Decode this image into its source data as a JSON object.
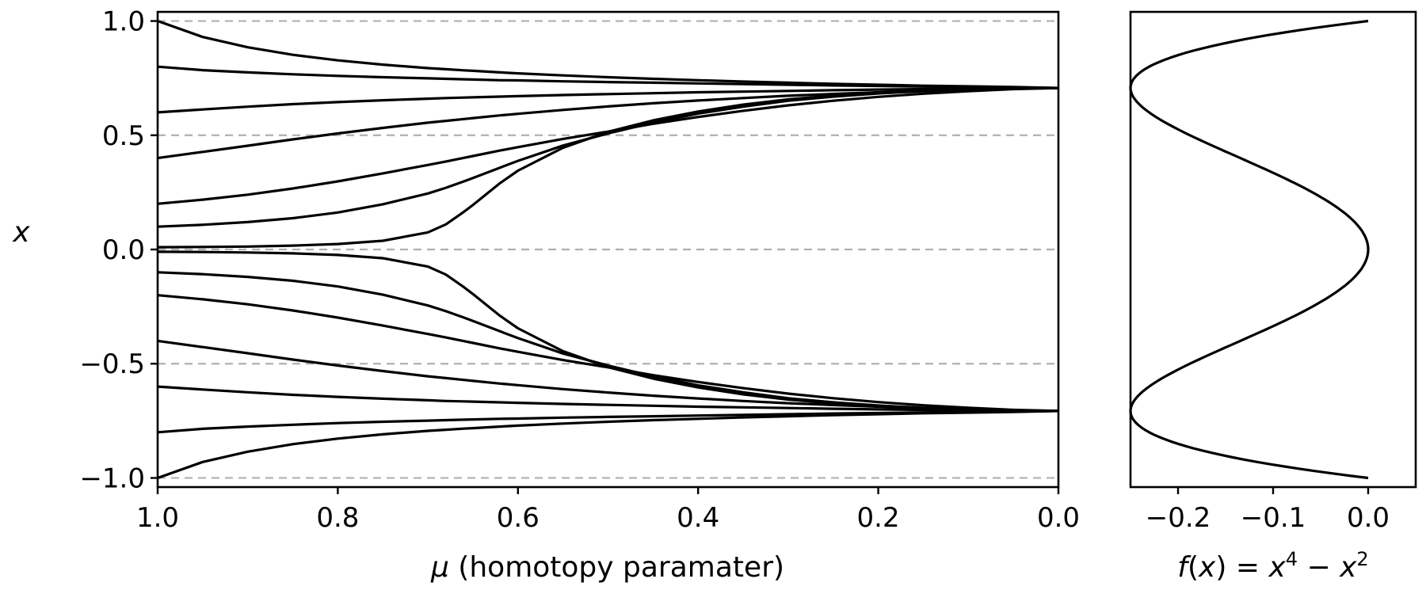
{
  "chart_data": [
    {
      "type": "line",
      "title": "",
      "xlabel": "μ (homotopy paramater)",
      "ylabel": "x",
      "xlim": [
        1.0,
        0.0
      ],
      "x_reversed": true,
      "ylim": [
        -1.04,
        1.04
      ],
      "xticks": [
        "1.0",
        "0.8",
        "0.6",
        "0.4",
        "0.2",
        "0.0"
      ],
      "yticks": [
        "1.0",
        "0.5",
        "0.0",
        "−0.5",
        "−1.0"
      ],
      "y_gridlines": [
        1.0,
        0.5,
        0.0,
        -0.5,
        -1.0
      ],
      "grid_style": "dashed gray horizontal lines",
      "legend": "none",
      "line_color": "#000000",
      "x": [
        1.0,
        0.95,
        0.9,
        0.85,
        0.8,
        0.75,
        0.7,
        0.68,
        0.66,
        0.65,
        0.62,
        0.6,
        0.55,
        0.5,
        0.45,
        0.4,
        0.35,
        0.3,
        0.25,
        0.2,
        0.15,
        0.1,
        0.05,
        0.0
      ],
      "series": [
        {
          "values": [
            1.0,
            0.93,
            0.885,
            0.852,
            0.828,
            0.809,
            0.794,
            0.789,
            0.784,
            0.782,
            0.775,
            0.771,
            0.762,
            0.754,
            0.747,
            0.741,
            0.735,
            0.73,
            0.725,
            0.721,
            0.717,
            0.714,
            0.711,
            0.707
          ]
        },
        {
          "values": [
            0.8,
            0.785,
            0.775,
            0.767,
            0.76,
            0.754,
            0.749,
            0.747,
            0.745,
            0.744,
            0.741,
            0.74,
            0.736,
            0.733,
            0.73,
            0.727,
            0.724,
            0.721,
            0.718,
            0.716,
            0.713,
            0.711,
            0.709,
            0.707
          ]
        },
        {
          "values": [
            0.6,
            0.613,
            0.625,
            0.636,
            0.645,
            0.653,
            0.66,
            0.663,
            0.665,
            0.666,
            0.669,
            0.671,
            0.676,
            0.68,
            0.684,
            0.688,
            0.691,
            0.694,
            0.697,
            0.7,
            0.702,
            0.704,
            0.706,
            0.707
          ]
        },
        {
          "values": [
            0.4,
            0.427,
            0.454,
            0.482,
            0.508,
            0.532,
            0.555,
            0.563,
            0.571,
            0.575,
            0.587,
            0.594,
            0.611,
            0.626,
            0.64,
            0.652,
            0.663,
            0.673,
            0.681,
            0.688,
            0.694,
            0.699,
            0.704,
            0.707
          ]
        },
        {
          "values": [
            0.2,
            0.218,
            0.24,
            0.267,
            0.298,
            0.333,
            0.37,
            0.385,
            0.401,
            0.409,
            0.433,
            0.448,
            0.484,
            0.516,
            0.55,
            0.58,
            0.607,
            0.631,
            0.651,
            0.668,
            0.682,
            0.693,
            0.702,
            0.707
          ]
        },
        {
          "values": [
            0.1,
            0.108,
            0.12,
            0.137,
            0.162,
            0.198,
            0.245,
            0.27,
            0.298,
            0.313,
            0.358,
            0.388,
            0.455,
            0.508,
            0.555,
            0.595,
            0.625,
            0.651,
            0.669,
            0.683,
            0.693,
            0.7,
            0.705,
            0.707
          ]
        },
        {
          "values": [
            0.01,
            0.011,
            0.013,
            0.017,
            0.024,
            0.038,
            0.075,
            0.11,
            0.165,
            0.195,
            0.29,
            0.345,
            0.445,
            0.515,
            0.565,
            0.604,
            0.634,
            0.657,
            0.674,
            0.687,
            0.696,
            0.702,
            0.705,
            0.707
          ]
        },
        {
          "values": [
            -0.01,
            -0.011,
            -0.013,
            -0.017,
            -0.024,
            -0.038,
            -0.075,
            -0.11,
            -0.165,
            -0.195,
            -0.29,
            -0.345,
            -0.445,
            -0.515,
            -0.565,
            -0.604,
            -0.634,
            -0.657,
            -0.674,
            -0.687,
            -0.696,
            -0.702,
            -0.705,
            -0.707
          ]
        },
        {
          "values": [
            -0.1,
            -0.108,
            -0.12,
            -0.137,
            -0.162,
            -0.198,
            -0.245,
            -0.27,
            -0.298,
            -0.313,
            -0.358,
            -0.388,
            -0.455,
            -0.508,
            -0.555,
            -0.595,
            -0.625,
            -0.651,
            -0.669,
            -0.683,
            -0.693,
            -0.7,
            -0.705,
            -0.707
          ]
        },
        {
          "values": [
            -0.2,
            -0.218,
            -0.24,
            -0.267,
            -0.298,
            -0.333,
            -0.37,
            -0.385,
            -0.401,
            -0.409,
            -0.433,
            -0.448,
            -0.484,
            -0.516,
            -0.55,
            -0.58,
            -0.607,
            -0.631,
            -0.651,
            -0.668,
            -0.682,
            -0.693,
            -0.702,
            -0.707
          ]
        },
        {
          "values": [
            -0.4,
            -0.427,
            -0.454,
            -0.482,
            -0.508,
            -0.532,
            -0.555,
            -0.563,
            -0.571,
            -0.575,
            -0.587,
            -0.594,
            -0.611,
            -0.626,
            -0.64,
            -0.652,
            -0.663,
            -0.673,
            -0.681,
            -0.688,
            -0.694,
            -0.699,
            -0.704,
            -0.707
          ]
        },
        {
          "values": [
            -0.6,
            -0.613,
            -0.625,
            -0.636,
            -0.645,
            -0.653,
            -0.66,
            -0.663,
            -0.665,
            -0.666,
            -0.669,
            -0.671,
            -0.676,
            -0.68,
            -0.684,
            -0.688,
            -0.691,
            -0.694,
            -0.697,
            -0.7,
            -0.702,
            -0.704,
            -0.706,
            -0.707
          ]
        },
        {
          "values": [
            -0.8,
            -0.785,
            -0.775,
            -0.767,
            -0.76,
            -0.754,
            -0.749,
            -0.747,
            -0.745,
            -0.744,
            -0.741,
            -0.74,
            -0.736,
            -0.733,
            -0.73,
            -0.727,
            -0.724,
            -0.721,
            -0.718,
            -0.716,
            -0.713,
            -0.711,
            -0.709,
            -0.707
          ]
        },
        {
          "values": [
            -1.0,
            -0.93,
            -0.885,
            -0.852,
            -0.828,
            -0.809,
            -0.794,
            -0.789,
            -0.784,
            -0.782,
            -0.775,
            -0.771,
            -0.762,
            -0.754,
            -0.747,
            -0.741,
            -0.735,
            -0.73,
            -0.725,
            -0.721,
            -0.717,
            -0.714,
            -0.711,
            -0.707
          ]
        }
      ]
    },
    {
      "type": "line",
      "title": "",
      "xlabel": "f(x) = x⁴ − x²",
      "xlabel_parts": {
        "f": "f",
        "open": "(",
        "x1": "x",
        "close": ") = ",
        "x2": "x",
        "exp4": "4",
        "minus": " − ",
        "x3": "x",
        "exp2": "2"
      },
      "ylabel": "",
      "xlim": [
        -0.25,
        0.05
      ],
      "ylim": [
        -1.04,
        1.04
      ],
      "xticks": [
        "−0.2",
        "−0.1",
        "0.0"
      ],
      "yticks": [],
      "grid": false,
      "legend": "none",
      "line_color": "#000000",
      "curve": "x values from -1.0 to 1.0, f = x^4 - x^2"
    }
  ]
}
